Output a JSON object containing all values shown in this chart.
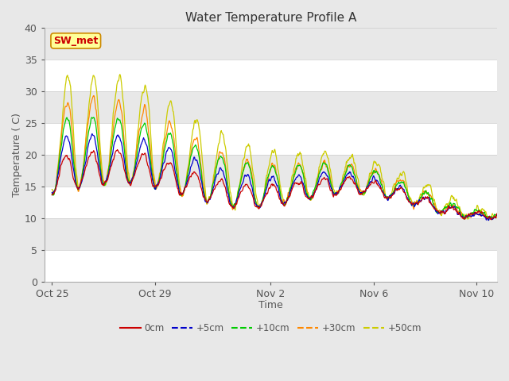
{
  "title": "Water Temperature Profile A",
  "xlabel": "Time",
  "ylabel": "Temperature (C)",
  "ylim": [
    0,
    40
  ],
  "bg_color": "#e8e8e8",
  "grid_bands": [
    {
      "ymin": 0,
      "ymax": 5,
      "color": "#ffffff"
    },
    {
      "ymin": 5,
      "ymax": 10,
      "color": "#e8e8e8"
    },
    {
      "ymin": 10,
      "ymax": 15,
      "color": "#ffffff"
    },
    {
      "ymin": 15,
      "ymax": 20,
      "color": "#e8e8e8"
    },
    {
      "ymin": 20,
      "ymax": 25,
      "color": "#ffffff"
    },
    {
      "ymin": 25,
      "ymax": 30,
      "color": "#e8e8e8"
    },
    {
      "ymin": 30,
      "ymax": 35,
      "color": "#ffffff"
    },
    {
      "ymin": 35,
      "ymax": 40,
      "color": "#e8e8e8"
    }
  ],
  "series_colors": [
    "#cc0000",
    "#0000cc",
    "#00cc00",
    "#ff8800",
    "#cccc00"
  ],
  "series_labels": [
    "0cm",
    "+5cm",
    "+10cm",
    "+30cm",
    "+50cm"
  ],
  "x_ticks_labels": [
    "Oct 25",
    "Oct 29",
    "Nov 2",
    "Nov 6",
    "Nov 10"
  ],
  "x_ticks_pos": [
    0.0,
    4.0,
    8.5,
    12.5,
    16.5
  ],
  "annotation_text": "SW_met",
  "annotation_color": "#cc0000",
  "annotation_bg": "#ffff99",
  "annotation_border": "#cc8800"
}
